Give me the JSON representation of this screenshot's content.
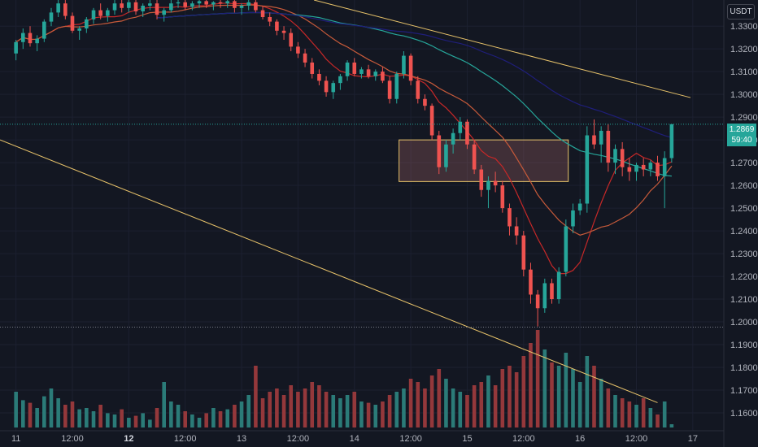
{
  "ui": {
    "currency": "USDT",
    "last_price": "1.2869",
    "countdown": "59:40"
  },
  "colors": {
    "background": "#131722",
    "grid": "#1c2030",
    "up": "#26a69a",
    "down": "#ef5350",
    "up_volume": "#2b7b78",
    "down_volume": "#94383b",
    "ma_fast": "#c62828",
    "ma_mid": "#c75a3a",
    "ma_slow": "#26a69a",
    "ma_slowest": "#1f1e7a",
    "trendline": "#e8c36a",
    "zone_fill": "rgba(200,120,120,0.25)",
    "zone_border": "#e8c36a"
  },
  "chart_data": {
    "type": "candlestick",
    "price_axis_labels": [
      "1.3300",
      "1.3200",
      "1.3100",
      "1.3000",
      "1.2900",
      "1.2800",
      "1.2700",
      "1.2600",
      "1.2500",
      "1.2400",
      "1.2300",
      "1.2200",
      "1.2100",
      "1.2000",
      "1.1900",
      "1.1800",
      "1.1700",
      "1.1600"
    ],
    "time_axis_labels": [
      {
        "label": "11",
        "t": 0,
        "bold": false
      },
      {
        "label": "12:00",
        "t": 12,
        "bold": false
      },
      {
        "label": "12",
        "t": 24,
        "bold": true
      },
      {
        "label": "12:00",
        "t": 36,
        "bold": false
      },
      {
        "label": "13",
        "t": 48,
        "bold": false
      },
      {
        "label": "12:00",
        "t": 60,
        "bold": false
      },
      {
        "label": "14",
        "t": 72,
        "bold": false
      },
      {
        "label": "12:00",
        "t": 84,
        "bold": false
      },
      {
        "label": "15",
        "t": 96,
        "bold": false
      },
      {
        "label": "12:00",
        "t": 108,
        "bold": false
      },
      {
        "label": "16",
        "t": 120,
        "bold": false
      },
      {
        "label": "12:00",
        "t": 132,
        "bold": false
      },
      {
        "label": "17",
        "t": 144,
        "bold": false
      }
    ],
    "ylim": [
      1.155,
      1.3415
    ],
    "xlim_hours": [
      -3.4,
      150.6
    ],
    "last_price": 1.2869,
    "dotted_level": 1.1977,
    "demand_zone": {
      "t0": 81.5,
      "t1": 117.5,
      "high": 1.28,
      "low": 1.2617
    },
    "trendlines": [
      {
        "t0": 63.4,
        "p0": 1.3415,
        "t1": 143.5,
        "p1": 1.2986
      },
      {
        "t0": -3.4,
        "p0": 1.28,
        "t1": 136.5,
        "p1": 1.1645
      }
    ],
    "ohlcv": [
      [
        1.318,
        1.324,
        1.315,
        1.323,
        55
      ],
      [
        1.323,
        1.329,
        1.32,
        1.327,
        42
      ],
      [
        1.327,
        1.33,
        1.321,
        1.3225,
        38
      ],
      [
        1.3225,
        1.326,
        1.319,
        1.3245,
        30
      ],
      [
        1.3245,
        1.333,
        1.323,
        1.332,
        48
      ],
      [
        1.332,
        1.338,
        1.33,
        1.336,
        60
      ],
      [
        1.336,
        1.3415,
        1.334,
        1.34,
        45
      ],
      [
        1.34,
        1.3415,
        1.333,
        1.3345,
        35
      ],
      [
        1.3345,
        1.336,
        1.327,
        1.328,
        40
      ],
      [
        1.328,
        1.33,
        1.324,
        1.329,
        28
      ],
      [
        1.329,
        1.334,
        1.327,
        1.333,
        30
      ],
      [
        1.333,
        1.338,
        1.331,
        1.337,
        25
      ],
      [
        1.337,
        1.34,
        1.333,
        1.3345,
        35
      ],
      [
        1.3345,
        1.338,
        1.332,
        1.337,
        22
      ],
      [
        1.337,
        1.3415,
        1.335,
        1.34,
        20
      ],
      [
        1.34,
        1.3415,
        1.336,
        1.338,
        28
      ],
      [
        1.338,
        1.3415,
        1.336,
        1.3405,
        15
      ],
      [
        1.3405,
        1.3415,
        1.335,
        1.3365,
        18
      ],
      [
        1.3365,
        1.34,
        1.334,
        1.339,
        22
      ],
      [
        1.339,
        1.3415,
        1.337,
        1.34,
        12
      ],
      [
        1.34,
        1.3415,
        1.333,
        1.335,
        30
      ],
      [
        1.335,
        1.338,
        1.332,
        1.337,
        70
      ],
      [
        1.337,
        1.3415,
        1.336,
        1.34,
        40
      ],
      [
        1.34,
        1.3415,
        1.338,
        1.3405,
        35
      ],
      [
        1.3405,
        1.3415,
        1.337,
        1.3385,
        25
      ],
      [
        1.3385,
        1.341,
        1.337,
        1.34,
        20
      ],
      [
        1.34,
        1.3415,
        1.338,
        1.341,
        15
      ],
      [
        1.341,
        1.3415,
        1.338,
        1.3395,
        22
      ],
      [
        1.3395,
        1.341,
        1.337,
        1.3405,
        30
      ],
      [
        1.3405,
        1.3415,
        1.338,
        1.34,
        25
      ],
      [
        1.34,
        1.3415,
        1.338,
        1.341,
        28
      ],
      [
        1.341,
        1.3415,
        1.336,
        1.338,
        35
      ],
      [
        1.338,
        1.34,
        1.335,
        1.339,
        40
      ],
      [
        1.339,
        1.3415,
        1.337,
        1.3405,
        50
      ],
      [
        1.3405,
        1.3415,
        1.336,
        1.337,
        95
      ],
      [
        1.337,
        1.339,
        1.333,
        1.334,
        45
      ],
      [
        1.334,
        1.336,
        1.33,
        1.332,
        55
      ],
      [
        1.332,
        1.333,
        1.326,
        1.328,
        60
      ],
      [
        1.328,
        1.33,
        1.324,
        1.327,
        50
      ],
      [
        1.327,
        1.329,
        1.319,
        1.321,
        65
      ],
      [
        1.321,
        1.323,
        1.316,
        1.318,
        55
      ],
      [
        1.318,
        1.32,
        1.312,
        1.314,
        60
      ],
      [
        1.314,
        1.316,
        1.307,
        1.309,
        70
      ],
      [
        1.309,
        1.311,
        1.304,
        1.306,
        65
      ],
      [
        1.306,
        1.308,
        1.299,
        1.301,
        55
      ],
      [
        1.301,
        1.306,
        1.298,
        1.305,
        50
      ],
      [
        1.305,
        1.309,
        1.302,
        1.308,
        45
      ],
      [
        1.308,
        1.315,
        1.306,
        1.314,
        50
      ],
      [
        1.314,
        1.316,
        1.308,
        1.309,
        55
      ],
      [
        1.309,
        1.312,
        1.307,
        1.311,
        40
      ],
      [
        1.311,
        1.313,
        1.307,
        1.308,
        38
      ],
      [
        1.308,
        1.311,
        1.306,
        1.31,
        35
      ],
      [
        1.31,
        1.312,
        1.305,
        1.306,
        40
      ],
      [
        1.306,
        1.308,
        1.296,
        1.298,
        50
      ],
      [
        1.298,
        1.31,
        1.296,
        1.309,
        55
      ],
      [
        1.309,
        1.319,
        1.307,
        1.317,
        60
      ],
      [
        1.317,
        1.318,
        1.304,
        1.306,
        75
      ],
      [
        1.306,
        1.308,
        1.296,
        1.298,
        70
      ],
      [
        1.298,
        1.3,
        1.293,
        1.295,
        60
      ],
      [
        1.295,
        1.296,
        1.28,
        1.282,
        80
      ],
      [
        1.282,
        1.284,
        1.265,
        1.268,
        90
      ],
      [
        1.268,
        1.28,
        1.266,
        1.278,
        75
      ],
      [
        1.278,
        1.285,
        1.274,
        1.283,
        60
      ],
      [
        1.283,
        1.29,
        1.28,
        1.288,
        55
      ],
      [
        1.288,
        1.289,
        1.276,
        1.278,
        50
      ],
      [
        1.278,
        1.28,
        1.265,
        1.267,
        65
      ],
      [
        1.267,
        1.269,
        1.255,
        1.258,
        70
      ],
      [
        1.258,
        1.264,
        1.25,
        1.262,
        80
      ],
      [
        1.262,
        1.266,
        1.257,
        1.26,
        65
      ],
      [
        1.26,
        1.262,
        1.248,
        1.25,
        90
      ],
      [
        1.25,
        1.252,
        1.238,
        1.242,
        95
      ],
      [
        1.242,
        1.246,
        1.234,
        1.238,
        85
      ],
      [
        1.238,
        1.24,
        1.22,
        1.223,
        110
      ],
      [
        1.223,
        1.226,
        1.208,
        1.212,
        130
      ],
      [
        1.212,
        1.214,
        1.198,
        1.206,
        150
      ],
      [
        1.206,
        1.219,
        1.204,
        1.217,
        120
      ],
      [
        1.217,
        1.219,
        1.208,
        1.21,
        100
      ],
      [
        1.21,
        1.224,
        1.208,
        1.222,
        95
      ],
      [
        1.222,
        1.245,
        1.22,
        1.242,
        115
      ],
      [
        1.242,
        1.252,
        1.239,
        1.249,
        90
      ],
      [
        1.249,
        1.254,
        1.247,
        1.252,
        70
      ],
      [
        1.252,
        1.286,
        1.248,
        1.282,
        110
      ],
      [
        1.282,
        1.289,
        1.276,
        1.278,
        95
      ],
      [
        1.278,
        1.286,
        1.27,
        1.284,
        75
      ],
      [
        1.284,
        1.287,
        1.266,
        1.27,
        60
      ],
      [
        1.27,
        1.278,
        1.265,
        1.276,
        50
      ],
      [
        1.276,
        1.279,
        1.264,
        1.268,
        45
      ],
      [
        1.268,
        1.272,
        1.262,
        1.266,
        40
      ],
      [
        1.266,
        1.27,
        1.262,
        1.269,
        35
      ],
      [
        1.269,
        1.272,
        1.264,
        1.267,
        45
      ],
      [
        1.267,
        1.271,
        1.264,
        1.27,
        30
      ],
      [
        1.27,
        1.273,
        1.262,
        1.264,
        20
      ],
      [
        1.264,
        1.275,
        1.25,
        1.272,
        40
      ],
      [
        1.272,
        1.287,
        1.27,
        1.2869,
        5
      ]
    ]
  }
}
